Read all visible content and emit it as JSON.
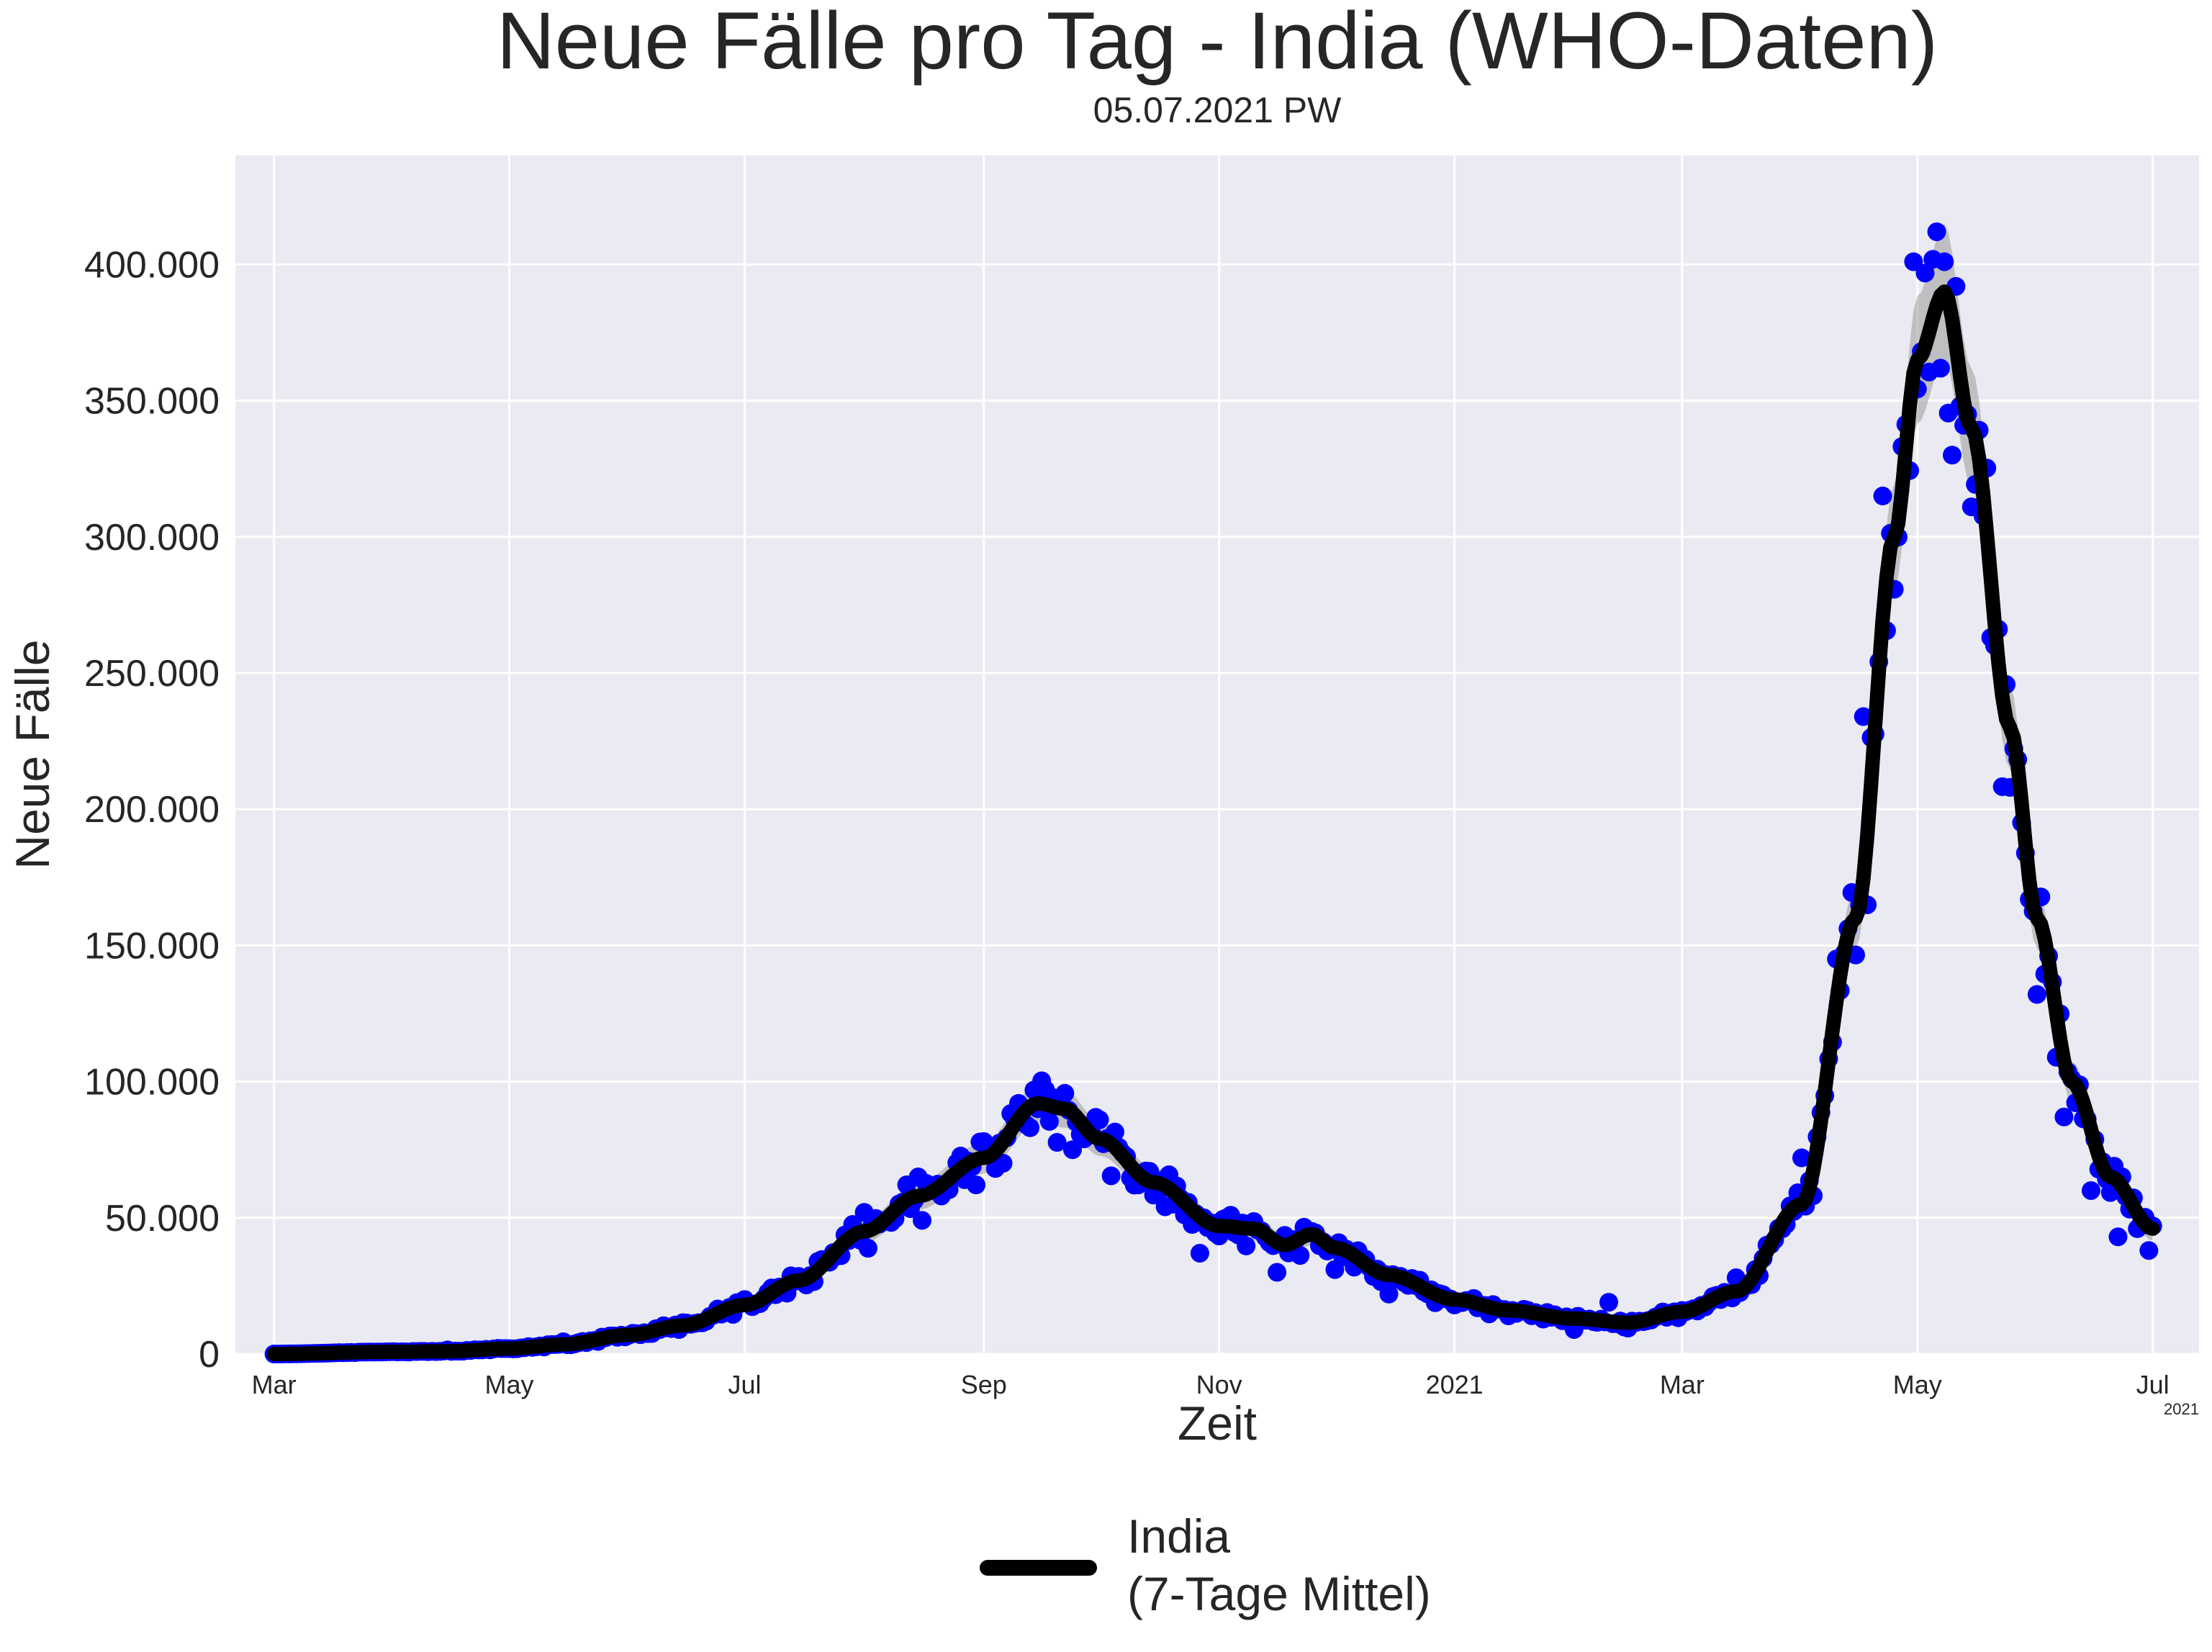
{
  "chart_data": {
    "type": "line",
    "title": "Neue Fälle pro Tag - India (WHO-Daten)",
    "subtitle": "05.07.2021 PW",
    "xlabel": "Zeit",
    "ylabel": "Neue Fälle",
    "x_offset_label": "2021",
    "xlim": [
      "2020-02-20",
      "2021-07-13"
    ],
    "ylim": [
      0,
      440000
    ],
    "grid": true,
    "legend_position": "bottom-center",
    "x_ticks": [
      {
        "date": "2020-03-01",
        "label": "Mar"
      },
      {
        "date": "2020-05-01",
        "label": "May"
      },
      {
        "date": "2020-07-01",
        "label": "Jul"
      },
      {
        "date": "2020-09-01",
        "label": "Sep"
      },
      {
        "date": "2020-11-01",
        "label": "Nov"
      },
      {
        "date": "2021-01-01",
        "label": "2021"
      },
      {
        "date": "2021-03-01",
        "label": "Mar"
      },
      {
        "date": "2021-05-01",
        "label": "May"
      },
      {
        "date": "2021-07-01",
        "label": "Jul"
      }
    ],
    "y_ticks": [
      {
        "value": 0,
        "label": "0"
      },
      {
        "value": 50000,
        "label": "50.000"
      },
      {
        "value": 100000,
        "label": "100.000"
      },
      {
        "value": 150000,
        "label": "150.000"
      },
      {
        "value": 200000,
        "label": "200.000"
      },
      {
        "value": 250000,
        "label": "250.000"
      },
      {
        "value": 300000,
        "label": "300.000"
      },
      {
        "value": 350000,
        "label": "350.000"
      },
      {
        "value": 400000,
        "label": "400.000"
      }
    ],
    "series": [
      {
        "name": "India\n(7-Tage Mittel)",
        "kind": "line",
        "color": "#000000",
        "points": [
          [
            "2020-03-01",
            0
          ],
          [
            "2020-04-01",
            800
          ],
          [
            "2020-04-15",
            1000
          ],
          [
            "2020-05-01",
            2000
          ],
          [
            "2020-05-15",
            3500
          ],
          [
            "2020-06-01",
            7000
          ],
          [
            "2020-06-15",
            10500
          ],
          [
            "2020-07-01",
            18000
          ],
          [
            "2020-07-15",
            27000
          ],
          [
            "2020-08-01",
            45000
          ],
          [
            "2020-08-15",
            58000
          ],
          [
            "2020-09-01",
            72000
          ],
          [
            "2020-09-15",
            92000
          ],
          [
            "2020-09-22",
            90000
          ],
          [
            "2020-10-01",
            79000
          ],
          [
            "2020-10-15",
            63000
          ],
          [
            "2020-11-01",
            47000
          ],
          [
            "2020-11-10",
            46000
          ],
          [
            "2020-11-18",
            40000
          ],
          [
            "2020-11-25",
            44000
          ],
          [
            "2020-12-01",
            39000
          ],
          [
            "2020-12-15",
            29000
          ],
          [
            "2021-01-01",
            20000
          ],
          [
            "2021-01-15",
            16000
          ],
          [
            "2021-02-01",
            13000
          ],
          [
            "2021-02-15",
            11500
          ],
          [
            "2021-03-01",
            15500
          ],
          [
            "2021-03-15",
            23000
          ],
          [
            "2021-04-01",
            55000
          ],
          [
            "2021-04-15",
            160000
          ],
          [
            "2021-04-25",
            300000
          ],
          [
            "2021-05-01",
            365000
          ],
          [
            "2021-05-08",
            390000
          ],
          [
            "2021-05-15",
            340000
          ],
          [
            "2021-05-25",
            230000
          ],
          [
            "2021-06-01",
            160000
          ],
          [
            "2021-06-10",
            100000
          ],
          [
            "2021-06-20",
            65000
          ],
          [
            "2021-07-01",
            46000
          ]
        ]
      },
      {
        "kind": "scatter",
        "color": "#0000ff",
        "points": [
          [
            "2020-04-15",
            1500
          ],
          [
            "2020-05-15",
            4500
          ],
          [
            "2020-06-15",
            11500
          ],
          [
            "2020-07-01",
            20000
          ],
          [
            "2020-07-20",
            34000
          ],
          [
            "2020-08-01",
            52000
          ],
          [
            "2020-08-15",
            65000
          ],
          [
            "2020-09-01",
            78000
          ],
          [
            "2020-09-10",
            92000
          ],
          [
            "2020-09-17",
            97000
          ],
          [
            "2020-09-24",
            75000
          ],
          [
            "2020-10-01",
            86000
          ],
          [
            "2020-10-10",
            62000
          ],
          [
            "2020-10-20",
            55000
          ],
          [
            "2020-10-27",
            37000
          ],
          [
            "2020-11-03",
            50000
          ],
          [
            "2020-11-16",
            30000
          ],
          [
            "2020-11-25",
            45000
          ],
          [
            "2020-12-01",
            31000
          ],
          [
            "2020-12-15",
            22000
          ],
          [
            "2021-01-01",
            18000
          ],
          [
            "2021-01-15",
            14000
          ],
          [
            "2021-02-01",
            9000
          ],
          [
            "2021-02-10",
            19000
          ],
          [
            "2021-02-15",
            9500
          ],
          [
            "2021-03-01",
            16000
          ],
          [
            "2021-03-15",
            28000
          ],
          [
            "2021-04-01",
            72000
          ],
          [
            "2021-04-10",
            145000
          ],
          [
            "2021-04-17",
            234000
          ],
          [
            "2021-04-22",
            315000
          ],
          [
            "2021-04-30",
            401000
          ],
          [
            "2021-05-02",
            368000
          ],
          [
            "2021-05-06",
            412000
          ],
          [
            "2021-05-08",
            401000
          ],
          [
            "2021-05-10",
            330000
          ],
          [
            "2021-05-12",
            348000
          ],
          [
            "2021-05-15",
            311000
          ],
          [
            "2021-05-20",
            263000
          ],
          [
            "2021-05-25",
            208000
          ],
          [
            "2021-06-01",
            132000
          ],
          [
            "2021-06-08",
            87000
          ],
          [
            "2021-06-15",
            60000
          ],
          [
            "2021-06-22",
            43000
          ],
          [
            "2021-06-28",
            48000
          ],
          [
            "2021-06-30",
            38000
          ],
          [
            "2021-07-01",
            47000
          ]
        ]
      }
    ]
  }
}
